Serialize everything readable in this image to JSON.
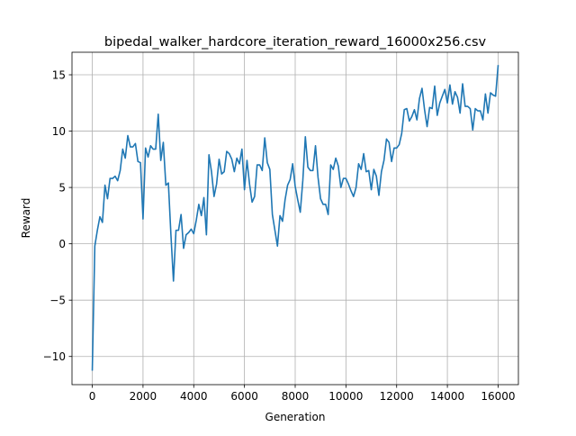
{
  "chart_data": {
    "type": "line",
    "title": "bipedal_walker_hardcore_iteration_reward_16000x256.csv",
    "xlabel": "Generation",
    "ylabel": "Reward",
    "xlim": [
      -800,
      16800
    ],
    "ylim": [
      -12.5,
      17
    ],
    "xticks": [
      0,
      2000,
      4000,
      6000,
      8000,
      10000,
      12000,
      14000,
      16000
    ],
    "yticks": [
      -10,
      -5,
      0,
      5,
      10,
      15
    ],
    "grid": true,
    "legend": "none",
    "line_color": "#1f77b4",
    "series": [
      {
        "x": [
          0,
          100,
          200,
          300,
          400,
          500,
          600,
          700,
          800,
          900,
          1000,
          1100,
          1200,
          1300,
          1400,
          1500,
          1600,
          1700,
          1800,
          1900,
          2000,
          2100,
          2200,
          2300,
          2400,
          2500,
          2600,
          2700,
          2800,
          2900,
          3000,
          3100,
          3200,
          3300,
          3400,
          3500,
          3600,
          3700,
          3800,
          3900,
          4000,
          4100,
          4200,
          4300,
          4400,
          4500,
          4600,
          4700,
          4800,
          4900,
          5000,
          5100,
          5200,
          5300,
          5400,
          5500,
          5600,
          5700,
          5800,
          5900,
          6000,
          6100,
          6200,
          6300,
          6400,
          6500,
          6600,
          6700,
          6800,
          6900,
          7000,
          7100,
          7200,
          7300,
          7400,
          7500,
          7600,
          7700,
          7800,
          7900,
          8000,
          8100,
          8200,
          8300,
          8400,
          8500,
          8600,
          8700,
          8800,
          8900,
          9000,
          9100,
          9200,
          9300,
          9400,
          9500,
          9600,
          9700,
          9800,
          9900,
          10000,
          10100,
          10200,
          10300,
          10400,
          10500,
          10600,
          10700,
          10800,
          10900,
          11000,
          11100,
          11200,
          11300,
          11400,
          11500,
          11600,
          11700,
          11800,
          11900,
          12000,
          12100,
          12200,
          12300,
          12400,
          12500,
          12600,
          12700,
          12800,
          12900,
          13000,
          13100,
          13200,
          13300,
          13400,
          13500,
          13600,
          13700,
          13800,
          13900,
          14000,
          14100,
          14200,
          14300,
          14400,
          14500,
          14600,
          14700,
          14800,
          14900,
          15000,
          15100,
          15200,
          15300,
          15400,
          15500,
          15600,
          15700,
          15800,
          15900,
          16000
        ],
        "values": [
          -11.2,
          -0.2,
          1.2,
          2.4,
          1.9,
          5.2,
          4.0,
          5.8,
          5.8,
          6.0,
          5.6,
          6.5,
          8.4,
          7.6,
          9.6,
          8.6,
          8.6,
          8.9,
          7.3,
          7.2,
          2.2,
          8.5,
          7.7,
          8.7,
          8.4,
          8.4,
          11.5,
          7.4,
          9.0,
          5.2,
          5.4,
          0.8,
          -3.3,
          1.2,
          1.2,
          2.6,
          -0.4,
          0.8,
          1.0,
          1.3,
          0.9,
          2.1,
          3.5,
          2.5,
          4.1,
          0.8,
          7.9,
          6.4,
          4.2,
          5.3,
          7.5,
          6.2,
          6.4,
          8.2,
          8.0,
          7.5,
          6.4,
          7.6,
          7.1,
          8.4,
          4.8,
          7.4,
          5.3,
          3.7,
          4.2,
          7.0,
          7.0,
          6.5,
          9.4,
          7.2,
          6.6,
          2.6,
          1.2,
          -0.2,
          2.5,
          2.0,
          3.9,
          5.2,
          5.7,
          7.1,
          5.1,
          3.9,
          2.8,
          5.6,
          9.5,
          6.8,
          6.5,
          6.5,
          8.7,
          5.9,
          4.0,
          3.5,
          3.5,
          2.6,
          7.0,
          6.6,
          7.6,
          6.9,
          5.0,
          5.8,
          5.8,
          5.3,
          4.7,
          4.2,
          5.0,
          7.1,
          6.6,
          8.0,
          6.4,
          6.5,
          4.8,
          6.6,
          6.0,
          4.3,
          6.4,
          7.4,
          9.3,
          9.0,
          7.3,
          8.5,
          8.5,
          8.8,
          9.8,
          11.9,
          12.0,
          10.9,
          11.3,
          11.9,
          11.0,
          12.9,
          13.8,
          11.9,
          10.4,
          12.1,
          12.0,
          14.0,
          11.4,
          12.5,
          13.1,
          13.7,
          12.5,
          14.1,
          12.4,
          13.5,
          13.0,
          11.6,
          14.2,
          12.2,
          12.2,
          12.0,
          10.1,
          12.0,
          11.8,
          11.8,
          11.0,
          13.3,
          11.6,
          13.4,
          13.2,
          13.1,
          15.8
        ]
      }
    ]
  }
}
